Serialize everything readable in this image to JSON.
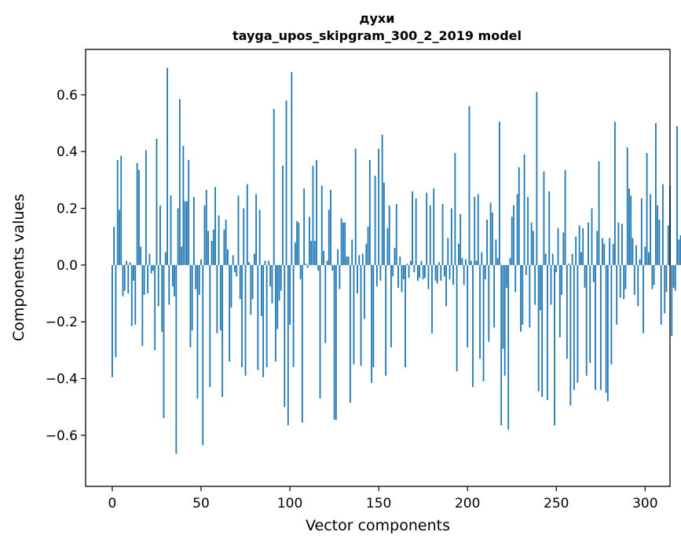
{
  "chart_data": {
    "type": "bar",
    "title": "духи",
    "subtitle": "tayga_upos_skipgram_300_2_2019 model",
    "xlabel": "Vector components",
    "ylabel": "Components values",
    "xlim": [
      -15,
      314
    ],
    "ylim": [
      -0.78,
      0.76
    ],
    "xticks": [
      0,
      50,
      100,
      150,
      200,
      250,
      300
    ],
    "xtick_labels": [
      "0",
      "50",
      "100",
      "150",
      "200",
      "250",
      "300"
    ],
    "yticks": [
      -0.6,
      -0.4,
      -0.2,
      0.0,
      0.2,
      0.4,
      0.6
    ],
    "ytick_labels": [
      "−0.6",
      "−0.4",
      "−0.2",
      "0.0",
      "0.2",
      "0.4",
      "0.6"
    ],
    "bar_color": "#1f77b4",
    "values": [
      -0.395,
      0.135,
      -0.325,
      0.37,
      0.195,
      0.385,
      -0.11,
      -0.09,
      0.015,
      -0.1,
      0.01,
      -0.215,
      -0.055,
      -0.21,
      0.36,
      0.335,
      0.065,
      -0.285,
      -0.105,
      0.405,
      -0.1,
      0.04,
      -0.03,
      -0.02,
      -0.3,
      0.445,
      -0.145,
      0.21,
      -0.235,
      -0.54,
      0.045,
      0.695,
      -0.14,
      0.245,
      -0.075,
      -0.11,
      -0.665,
      0.2,
      0.585,
      0.065,
      0.42,
      0.225,
      0.225,
      0.37,
      -0.29,
      -0.23,
      0.24,
      -0.085,
      -0.47,
      -0.105,
      0.02,
      -0.635,
      0.21,
      0.265,
      0.12,
      -0.43,
      0.085,
      0.125,
      0.275,
      -0.24,
      0.175,
      -0.23,
      -0.465,
      0.125,
      0.16,
      0.055,
      -0.34,
      -0.15,
      0.035,
      -0.025,
      -0.04,
      0.245,
      -0.12,
      -0.36,
      0.2,
      -0.39,
      0.285,
      0.01,
      -0.175,
      -0.12,
      0.04,
      0.25,
      -0.37,
      0.195,
      -0.18,
      -0.395,
      0.015,
      -0.36,
      0.015,
      -0.075,
      -0.135,
      0.55,
      -0.34,
      -0.225,
      -0.125,
      -0.09,
      0.35,
      -0.5,
      0.58,
      -0.565,
      -0.21,
      0.68,
      -0.36,
      0.08,
      0.155,
      0.15,
      -0.05,
      -0.555,
      0.27,
      0.005,
      -0.01,
      0.17,
      0.085,
      0.35,
      0.085,
      0.37,
      -0.02,
      -0.47,
      0.28,
      0.05,
      -0.275,
      0.015,
      0.195,
      0.265,
      -0.02,
      -0.545,
      -0.545,
      0.055,
      -0.085,
      0.165,
      0.15,
      0.15,
      0.03,
      0.03,
      -0.485,
      0.09,
      -0.35,
      0.41,
      -0.1,
      0.035,
      -0.355,
      0.04,
      -0.19,
      0.075,
      0.135,
      0.37,
      -0.415,
      -0.36,
      0.315,
      -0.075,
      0.41,
      -0.055,
      0.46,
      0.29,
      -0.39,
      0.13,
      0.21,
      -0.29,
      -0.04,
      0.06,
      0.215,
      -0.08,
      0.03,
      -0.095,
      -0.05,
      -0.36,
      0.005,
      -0.045,
      0.015,
      0.26,
      -0.025,
      0.235,
      -0.055,
      -0.045,
      0.015,
      -0.05,
      -0.045,
      0.255,
      -0.085,
      0.21,
      -0.24,
      0.27,
      -0.055,
      -0.065,
      0.01,
      -0.055,
      0.215,
      -0.04,
      -0.145,
      0.095,
      -0.05,
      0.2,
      -0.07,
      0.395,
      -0.375,
      0.075,
      0.18,
      0.025,
      -0.07,
      0.02,
      -0.29,
      0.56,
      0.015,
      -0.43,
      0.24,
      0.015,
      0.25,
      -0.33,
      0.045,
      -0.41,
      -0.05,
      0.16,
      -0.27,
      0.22,
      0.185,
      -0.22,
      0.09,
      0.025,
      0.505,
      -0.565,
      -0.295,
      -0.39,
      -0.08,
      -0.58,
      0.025,
      0.17,
      0.21,
      -0.095,
      0.25,
      0.345,
      -0.235,
      -0.21,
      0.39,
      -0.035,
      0.24,
      -0.22,
      0.15,
      0.12,
      -0.14,
      0.61,
      -0.445,
      -0.16,
      -0.465,
      0.33,
      0.04,
      -0.475,
      0.26,
      -0.14,
      0.04,
      -0.565,
      -0.025,
      0.13,
      -0.255,
      -0.105,
      0.115,
      0.335,
      -0.33,
      0.005,
      -0.495,
      0.04,
      -0.44,
      0.1,
      -0.415,
      0.14,
      0.045,
      0.13,
      -0.08,
      -0.39,
      0.15,
      -0.345,
      0.2,
      -0.06,
      -0.44,
      0.12,
      0.365,
      -0.44,
      0.095,
      0.075,
      -0.45,
      -0.48,
      0.095,
      -0.35,
      0.075,
      0.505,
      -0.21,
      0.15,
      -0.115,
      0.145,
      -0.12,
      -0.085,
      0.415,
      0.27,
      0.245,
      0.095,
      -0.105,
      0.07,
      -0.145,
      0.02,
      0.235,
      -0.24,
      0.065,
      0.395,
      0.045,
      0.25,
      -0.085,
      -0.07,
      0.5,
      0.21,
      0.16,
      -0.21,
      0.285,
      -0.17,
      -0.095,
      0.14,
      0.28,
      -0.25,
      -0.08,
      -0.09,
      0.49,
      0.09,
      0.105
    ]
  }
}
